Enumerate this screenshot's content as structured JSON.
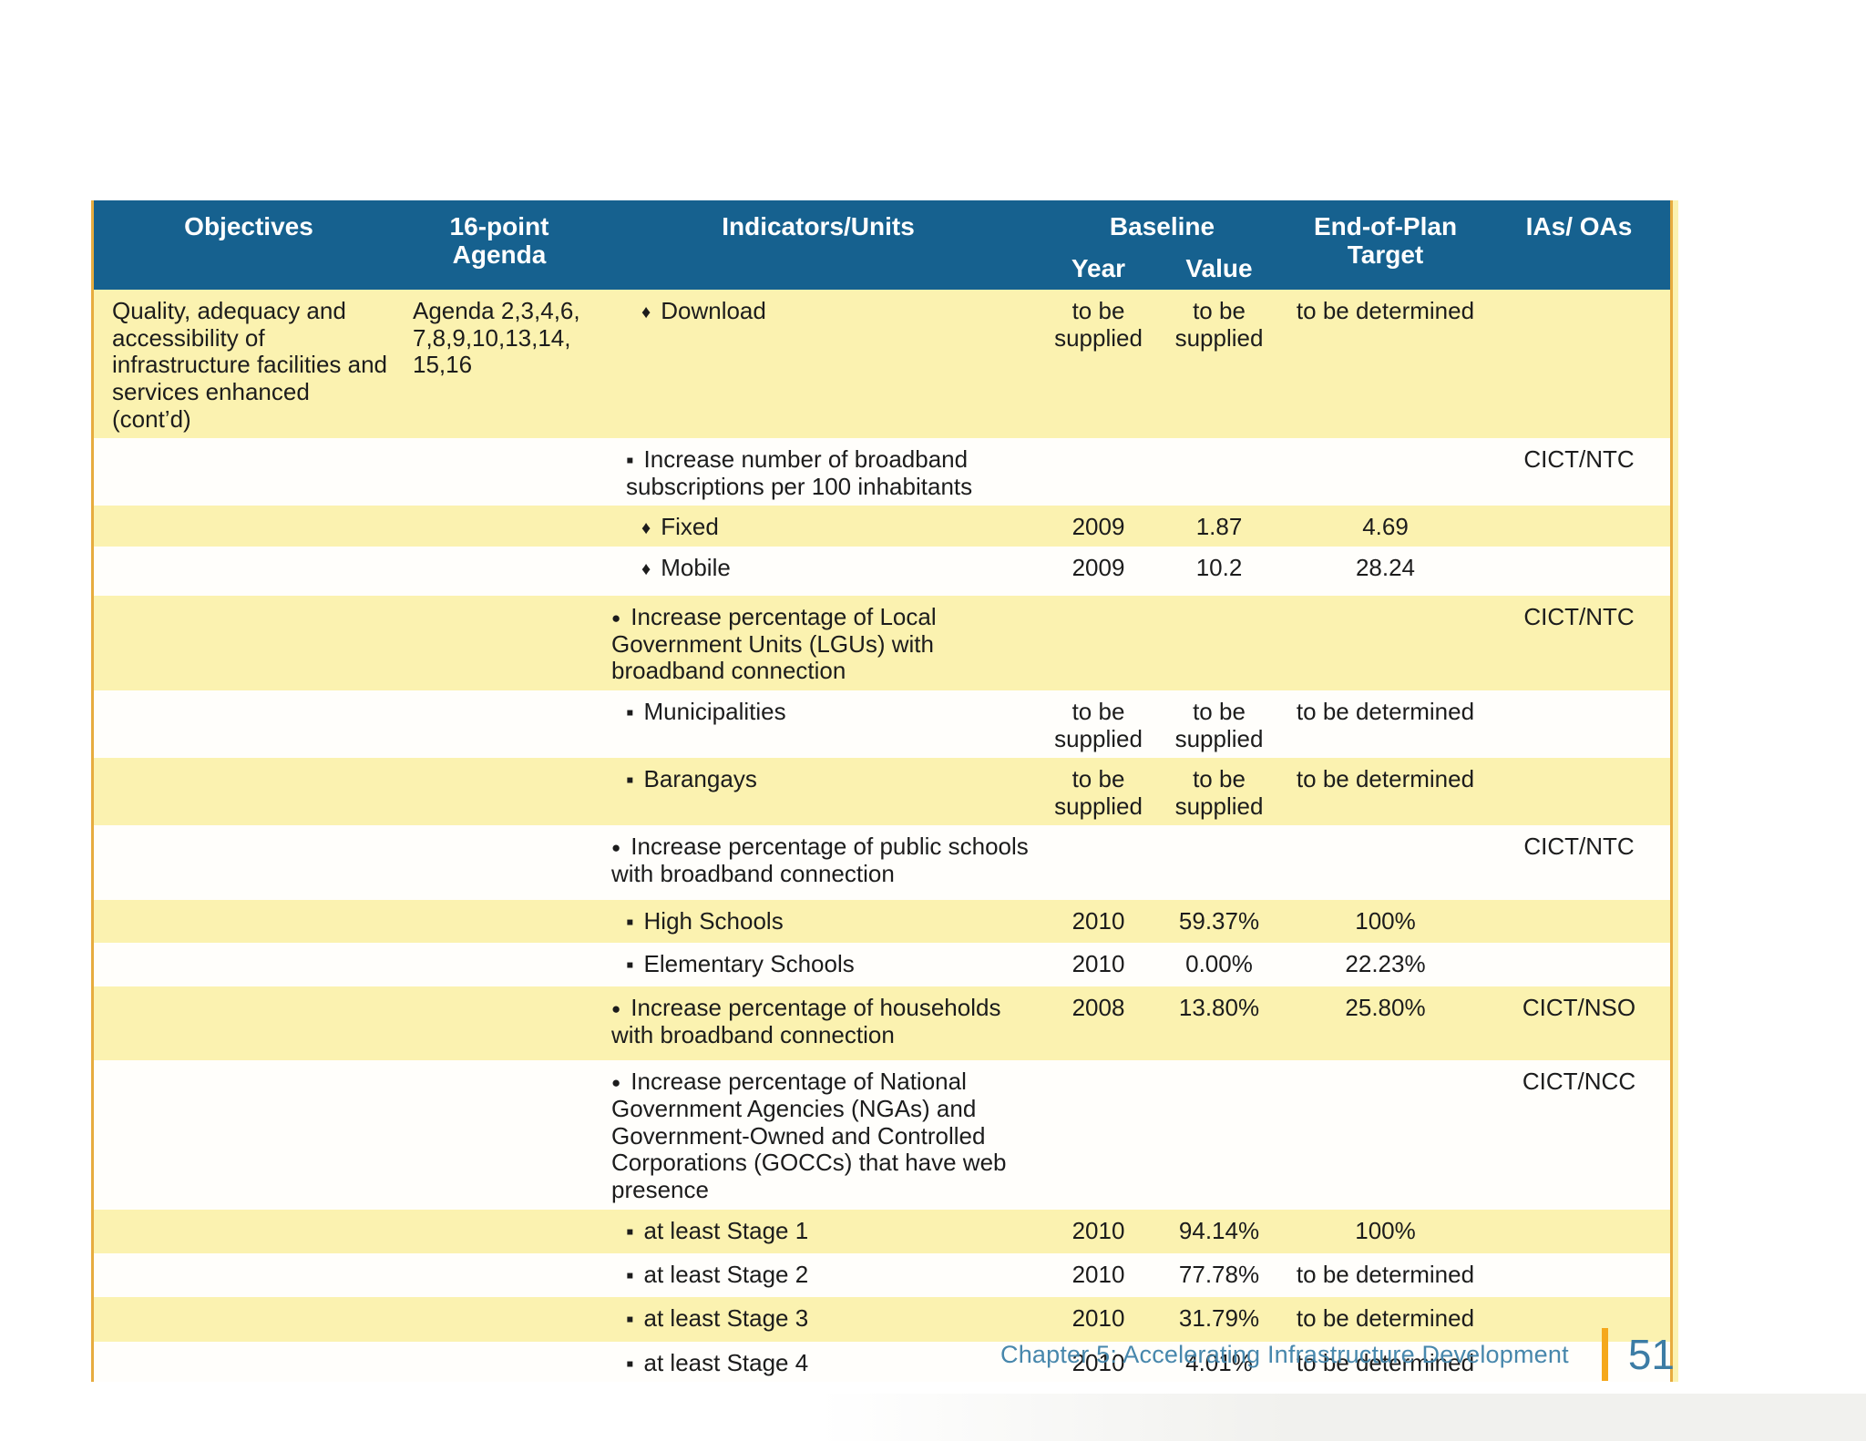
{
  "colors": {
    "header_bg": "#16618F",
    "row_yellow": "#FBF2B0",
    "row_white": "#FFFEFB",
    "table_edge": "#E7AC3F",
    "footer_blue": "#4787AC",
    "footer_bar_orange": "#F5A81C"
  },
  "table": {
    "headers": {
      "objectives": "Objectives",
      "agenda_line1": "16-point",
      "agenda_line2": "Agenda",
      "indicators": "Indicators/Units",
      "baseline": "Baseline",
      "year": "Year",
      "value": "Value",
      "target_line1": "End-of-Plan",
      "target_line2": "Target",
      "ias": "IAs/ OAs"
    },
    "bullets": {
      "1": "●",
      "2": "▪",
      "3": "♦"
    },
    "rows": [
      {
        "objective": "Quality, adequacy and accessibility of infrastructure facilities and services enhanced (cont’d)",
        "agenda": "Agenda 2,3,4,6, 7,8,9,10,13,14, 15,16",
        "level": 3,
        "indicator": "Download",
        "year": "to be supplied",
        "value": "to be supplied",
        "target": "to be determined",
        "ias": ""
      },
      {
        "objective": "",
        "agenda": "",
        "level": 2,
        "indicator": "Increase number of broadband subscriptions per 100 inhabitants",
        "year": "",
        "value": "",
        "target": "",
        "ias": "CICT/NTC"
      },
      {
        "objective": "",
        "agenda": "",
        "level": 3,
        "indicator": "Fixed",
        "year": "2009",
        "value": "1.87",
        "target": "4.69",
        "ias": ""
      },
      {
        "objective": "",
        "agenda": "",
        "level": 3,
        "indicator": "Mobile",
        "year": "2009",
        "value": "10.2",
        "target": "28.24",
        "ias": ""
      },
      {
        "objective": "",
        "agenda": "",
        "level": 1,
        "indicator": "Increase percentage of Local Government Units (LGUs) with broadband connection",
        "year": "",
        "value": "",
        "target": "",
        "ias": "CICT/NTC"
      },
      {
        "objective": "",
        "agenda": "",
        "level": 2,
        "indicator": "Municipalities",
        "year": "to be supplied",
        "value": "to be supplied",
        "target": "to be determined",
        "ias": ""
      },
      {
        "objective": "",
        "agenda": "",
        "level": 2,
        "indicator": "Barangays",
        "year": "to be supplied",
        "value": "to be supplied",
        "target": "to be determined",
        "ias": ""
      },
      {
        "objective": "",
        "agenda": "",
        "level": 1,
        "indicator": "Increase percentage of public schools with broadband connection",
        "year": "",
        "value": "",
        "target": "",
        "ias": "CICT/NTC"
      },
      {
        "objective": "",
        "agenda": "",
        "level": 2,
        "indicator": "High Schools",
        "year": "2010",
        "value": "59.37%",
        "target": "100%",
        "ias": ""
      },
      {
        "objective": "",
        "agenda": "",
        "level": 2,
        "indicator": "Elementary Schools",
        "year": "2010",
        "value": "0.00%",
        "target": "22.23%",
        "ias": ""
      },
      {
        "objective": "",
        "agenda": "",
        "level": 1,
        "indicator": "Increase percentage of households with broadband connection",
        "year": "2008",
        "value": "13.80%",
        "target": "25.80%",
        "ias": "CICT/NSO"
      },
      {
        "objective": "",
        "agenda": "",
        "level": 1,
        "indicator": "Increase percentage of National Government Agencies (NGAs) and Government-Owned and Controlled Corporations (GOCCs) that have web presence",
        "year": "",
        "value": "",
        "target": "",
        "ias": "CICT/NCC"
      },
      {
        "objective": "",
        "agenda": "",
        "level": 2,
        "indicator": "at least Stage 1",
        "year": "2010",
        "value": "94.14%",
        "target": "100%",
        "ias": ""
      },
      {
        "objective": "",
        "agenda": "",
        "level": 2,
        "indicator": "at least Stage 2",
        "year": "2010",
        "value": "77.78%",
        "target": "to be determined",
        "ias": ""
      },
      {
        "objective": "",
        "agenda": "",
        "level": 2,
        "indicator": "at least Stage 3",
        "year": "2010",
        "value": "31.79%",
        "target": "to be determined",
        "ias": ""
      },
      {
        "objective": "",
        "agenda": "",
        "level": 2,
        "indicator": "at least Stage 4",
        "year": "2010",
        "value": "4.01%",
        "target": "to be determined",
        "ias": ""
      }
    ]
  },
  "footer": {
    "chapter": "Chapter 5: Accelerating Infrastructure Development",
    "page_number": "51"
  }
}
